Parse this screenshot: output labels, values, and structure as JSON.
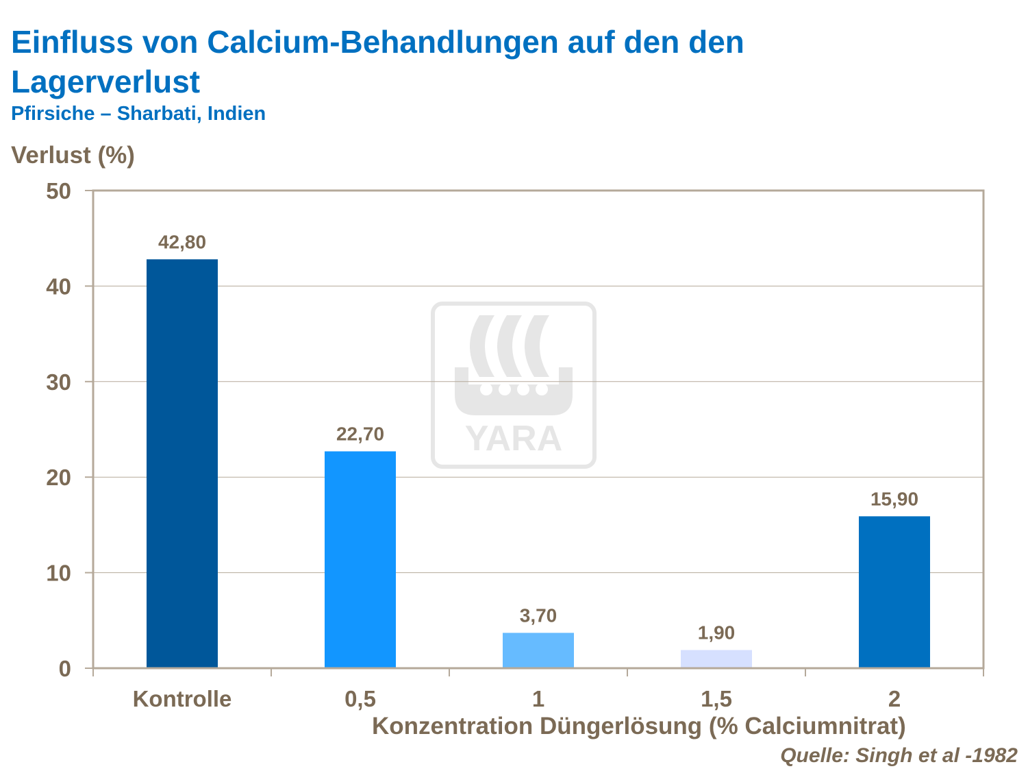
{
  "chart_data": {
    "type": "bar",
    "title": "Einfluss von Calcium-Behandlungen auf den den Lagerverlust",
    "subtitle": "Pfirsiche – Sharbati, Indien",
    "ylabel": "Verlust (%)",
    "xlabel": "Konzentration Düngerlösung (% Calciumnitrat)",
    "source": "Quelle: Singh et al -1982",
    "categories": [
      "Kontrolle",
      "0,5",
      "1",
      "1,5",
      "2"
    ],
    "values": [
      42.8,
      22.7,
      3.7,
      1.9,
      15.9
    ],
    "data_labels": [
      "42,80",
      "22,70",
      "3,70",
      "1,90",
      "15,90"
    ],
    "bar_colors": [
      "#00579a",
      "#1296ff",
      "#66bbff",
      "#d6e0ff",
      "#0070c0"
    ],
    "ylim": [
      0,
      50
    ],
    "yticks": [
      "0",
      "10",
      "20",
      "30",
      "40",
      "50"
    ],
    "grid": true,
    "legend": "none",
    "watermark": "YARA"
  }
}
